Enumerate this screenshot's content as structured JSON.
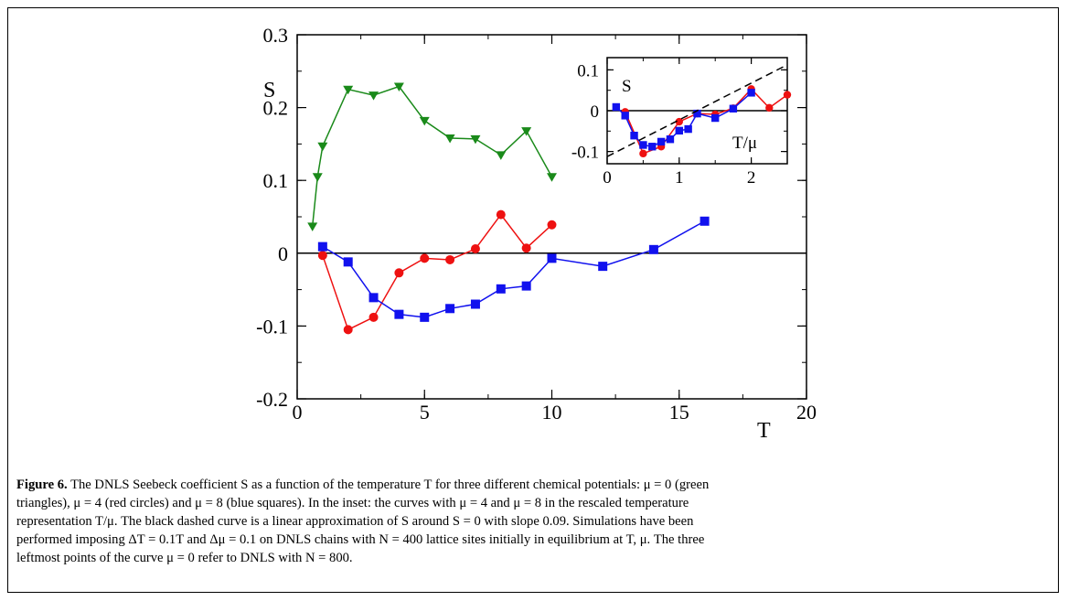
{
  "chart_data": [
    {
      "type": "line",
      "xlabel": "T",
      "ylabel": "S",
      "xlim": [
        0,
        20
      ],
      "ylim": [
        -0.2,
        0.3
      ],
      "x_ticks": [
        "0",
        "5",
        "10",
        "15",
        "20"
      ],
      "y_ticks": [
        "-0.2",
        "-0.1",
        "0",
        "0.1",
        "0.2",
        "0.3"
      ],
      "zero_line": true,
      "series": [
        {
          "color": "#1a8a1a",
          "marker": "triangle-down",
          "points": [
            [
              0.6,
              0.037
            ],
            [
              0.8,
              0.105
            ],
            [
              1.0,
              0.147
            ],
            [
              2.0,
              0.225
            ],
            [
              3.0,
              0.217
            ],
            [
              4.0,
              0.229
            ],
            [
              5.0,
              0.182
            ],
            [
              6.0,
              0.158
            ],
            [
              7.0,
              0.157
            ],
            [
              8.0,
              0.135
            ],
            [
              9.0,
              0.168
            ],
            [
              10.0,
              0.105
            ]
          ]
        },
        {
          "color": "#ee1111",
          "marker": "circle",
          "points": [
            [
              1.0,
              -0.003
            ],
            [
              2.0,
              -0.105
            ],
            [
              3.0,
              -0.088
            ],
            [
              4.0,
              -0.027
            ],
            [
              5.0,
              -0.007
            ],
            [
              6.0,
              -0.009
            ],
            [
              7.0,
              0.006
            ],
            [
              8.0,
              0.053
            ],
            [
              9.0,
              0.007
            ],
            [
              10.0,
              0.039
            ]
          ]
        },
        {
          "color": "#1111ee",
          "marker": "square",
          "points": [
            [
              1.0,
              0.009
            ],
            [
              2.0,
              -0.012
            ],
            [
              3.0,
              -0.061
            ],
            [
              4.0,
              -0.084
            ],
            [
              5.0,
              -0.088
            ],
            [
              6.0,
              -0.076
            ],
            [
              7.0,
              -0.07
            ],
            [
              8.0,
              -0.049
            ],
            [
              9.0,
              -0.045
            ],
            [
              10.0,
              -0.007
            ],
            [
              12.0,
              -0.018
            ],
            [
              14.0,
              0.005
            ],
            [
              16.0,
              0.044
            ]
          ]
        }
      ]
    },
    {
      "type": "line",
      "inset": true,
      "xlabel": "T/μ",
      "ylabel": "S",
      "xlim": [
        0,
        2.5
      ],
      "ylim": [
        -0.13,
        0.13
      ],
      "x_ticks": [
        "0",
        "1",
        "2"
      ],
      "y_ticks": [
        "-0.1",
        "0",
        "0.1"
      ],
      "zero_line": true,
      "series": [
        {
          "color": "#ee1111",
          "marker": "circle",
          "points": [
            [
              0.25,
              -0.003
            ],
            [
              0.5,
              -0.105
            ],
            [
              0.75,
              -0.088
            ],
            [
              1.0,
              -0.027
            ],
            [
              1.25,
              -0.007
            ],
            [
              1.5,
              -0.009
            ],
            [
              1.75,
              0.006
            ],
            [
              2.0,
              0.053
            ],
            [
              2.25,
              0.007
            ],
            [
              2.5,
              0.039
            ]
          ]
        },
        {
          "color": "#1111ee",
          "marker": "square",
          "points": [
            [
              0.125,
              0.009
            ],
            [
              0.25,
              -0.012
            ],
            [
              0.375,
              -0.061
            ],
            [
              0.5,
              -0.084
            ],
            [
              0.625,
              -0.088
            ],
            [
              0.75,
              -0.076
            ],
            [
              0.875,
              -0.07
            ],
            [
              1.0,
              -0.049
            ],
            [
              1.125,
              -0.045
            ],
            [
              1.25,
              -0.007
            ],
            [
              1.5,
              -0.018
            ],
            [
              1.75,
              0.005
            ],
            [
              2.0,
              0.044
            ]
          ]
        },
        {
          "color": "#000000",
          "style": "dashed",
          "slope": 0.09,
          "points": [
            [
              0,
              -0.1125
            ],
            [
              2.5,
              0.1125
            ]
          ]
        }
      ]
    }
  ],
  "caption": {
    "label": "Figure 6.",
    "text_lines": [
      "The DNLS Seebeck coefficient S as a function of the temperature T for three different chemical potentials: μ = 0 (green",
      "triangles), μ = 4 (red circles) and μ = 8 (blue squares). In the inset: the curves with μ = 4 and μ = 8 in the rescaled temperature",
      "representation T/μ. The black dashed curve is a linear approximation of S around S = 0 with slope 0.09. Simulations have been",
      "performed imposing ΔT = 0.1T and Δμ = 0.1 on DNLS chains with N = 400 lattice sites initially in equilibrium at T, μ. The three",
      "leftmost points of the curve μ = 0 refer to DNLS with N = 800."
    ]
  }
}
